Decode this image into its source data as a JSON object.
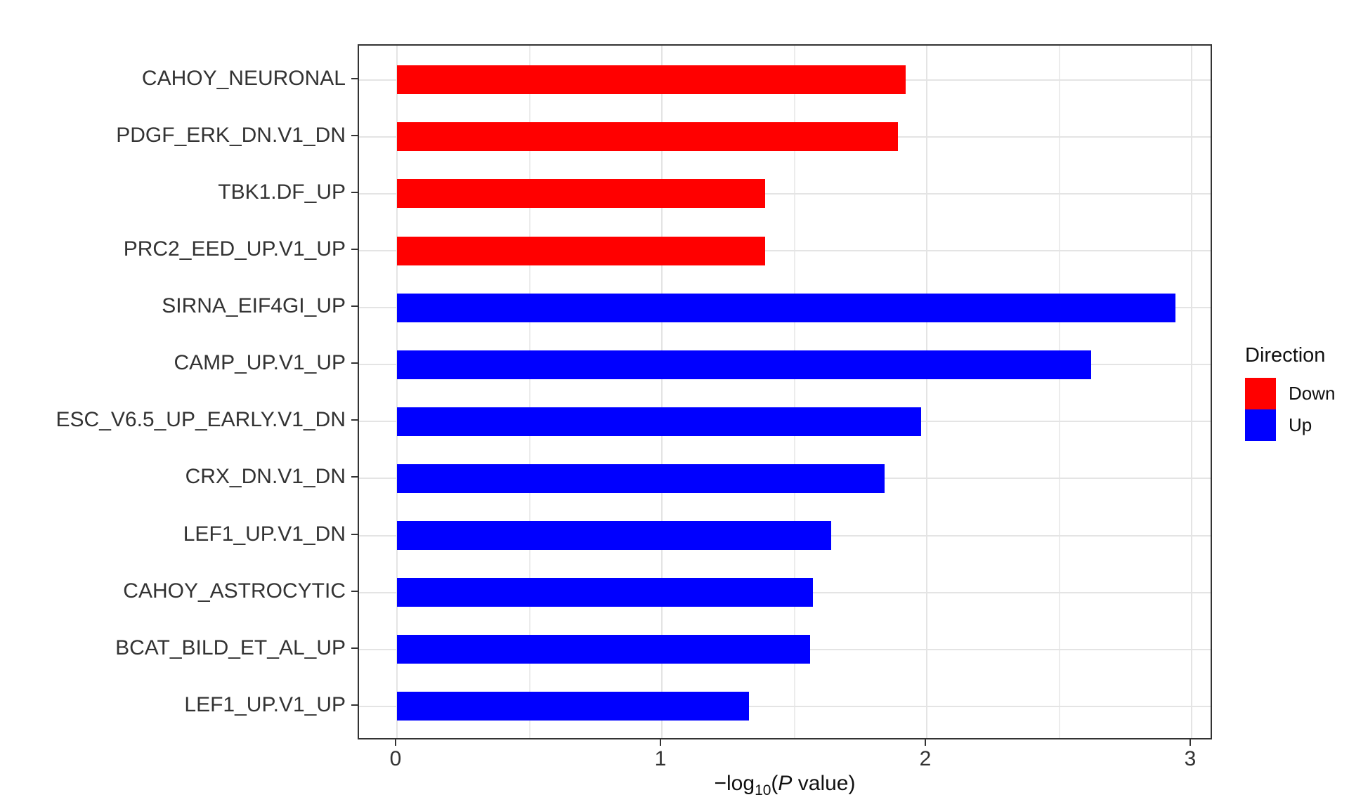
{
  "chart_data": {
    "type": "bar",
    "orientation": "horizontal",
    "title": "",
    "xlabel": "−log10(P value)",
    "xlabel_parts": {
      "minus_log": "−log",
      "sub": "10",
      "open_paren": "(",
      "p_italic": "P",
      "suffix": " value)"
    },
    "ylabel": "",
    "xlim": [
      0,
      3
    ],
    "x_ticks": [
      0,
      1,
      2,
      3
    ],
    "x_tick_labels": [
      "0",
      "1",
      "2",
      "3"
    ],
    "x_minor_gridlines": [
      0.5,
      1.5,
      2.5
    ],
    "grid": "on",
    "categories": [
      "CAHOY_NEURONAL",
      "PDGF_ERK_DN.V1_DN",
      "TBK1.DF_UP",
      "PRC2_EED_UP.V1_UP",
      "SIRNA_EIF4GI_UP",
      "CAMP_UP.V1_UP",
      "ESC_V6.5_UP_EARLY.V1_DN",
      "CRX_DN.V1_DN",
      "LEF1_UP.V1_DN",
      "CAHOY_ASTROCYTIC",
      "BCAT_BILD_ET_AL_UP",
      "LEF1_UP.V1_UP"
    ],
    "bars": [
      {
        "label": "CAHOY_NEURONAL",
        "value": 1.92,
        "direction": "Down"
      },
      {
        "label": "PDGF_ERK_DN.V1_DN",
        "value": 1.89,
        "direction": "Down"
      },
      {
        "label": "TBK1.DF_UP",
        "value": 1.39,
        "direction": "Down"
      },
      {
        "label": "PRC2_EED_UP.V1_UP",
        "value": 1.39,
        "direction": "Down"
      },
      {
        "label": "SIRNA_EIF4GI_UP",
        "value": 2.94,
        "direction": "Up"
      },
      {
        "label": "CAMP_UP.V1_UP",
        "value": 2.62,
        "direction": "Up"
      },
      {
        "label": "ESC_V6.5_UP_EARLY.V1_DN",
        "value": 1.98,
        "direction": "Up"
      },
      {
        "label": "CRX_DN.V1_DN",
        "value": 1.84,
        "direction": "Up"
      },
      {
        "label": "LEF1_UP.V1_DN",
        "value": 1.64,
        "direction": "Up"
      },
      {
        "label": "CAHOY_ASTROCYTIC",
        "value": 1.57,
        "direction": "Up"
      },
      {
        "label": "BCAT_BILD_ET_AL_UP",
        "value": 1.56,
        "direction": "Up"
      },
      {
        "label": "LEF1_UP.V1_UP",
        "value": 1.33,
        "direction": "Up"
      }
    ],
    "colors": {
      "Down": "#ff0000",
      "Up": "#0000ff"
    },
    "legend": {
      "position": "right",
      "title": "Direction",
      "entries": [
        {
          "label": "Down",
          "color": "#ff0000"
        },
        {
          "label": "Up",
          "color": "#0000ff"
        }
      ]
    }
  }
}
